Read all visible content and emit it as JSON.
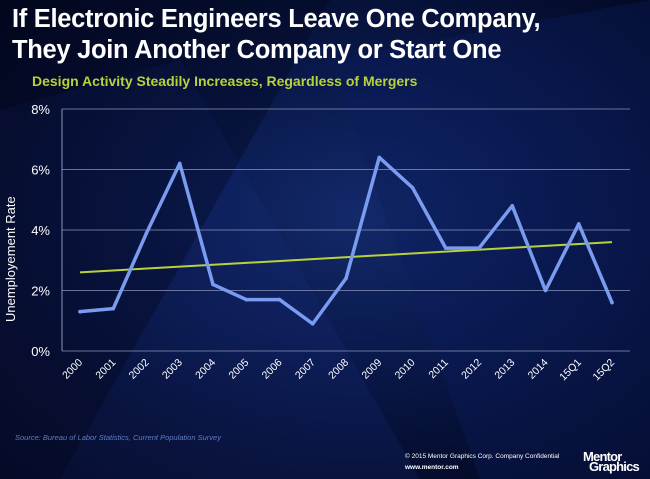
{
  "title_line1": "If Electronic Engineers Leave One Company,",
  "title_line2": "They Join Another Company or Start One",
  "subtitle": "Design Activity Steadily Increases, Regardless of Mergers",
  "ylabel": "Unemployement Rate",
  "source": "Source:  Bureau of Labor Statistics, Current Population Survey",
  "copyright": "© 2015 Mentor Graphics Corp.     Company Confidential",
  "url": "www.mentor.com",
  "logo_line1": "Mentor",
  "logo_line2": "Graphics",
  "colors": {
    "series": "#7a9cf0",
    "trend": "#b8d23a",
    "grid": "#8a94b8",
    "text": "#ffffff",
    "subtitle": "#b8d23a"
  },
  "chart_data": {
    "type": "line",
    "categories": [
      "2000",
      "2001",
      "2002",
      "2003",
      "2004",
      "2005",
      "2006",
      "2007",
      "2008",
      "2009",
      "2010",
      "2011",
      "2012",
      "2013",
      "2014",
      "15Q1",
      "15Q2"
    ],
    "values": [
      1.3,
      1.4,
      3.9,
      6.2,
      2.2,
      1.7,
      1.7,
      0.9,
      2.4,
      6.4,
      5.4,
      3.4,
      3.4,
      4.8,
      2.0,
      4.2,
      1.6
    ],
    "trend": [
      2.6,
      3.6
    ],
    "yticks": [
      "0%",
      "2%",
      "4%",
      "6%",
      "8%"
    ],
    "ylim": [
      0,
      8
    ],
    "ylabel": "Unemployement Rate",
    "grid": true
  }
}
